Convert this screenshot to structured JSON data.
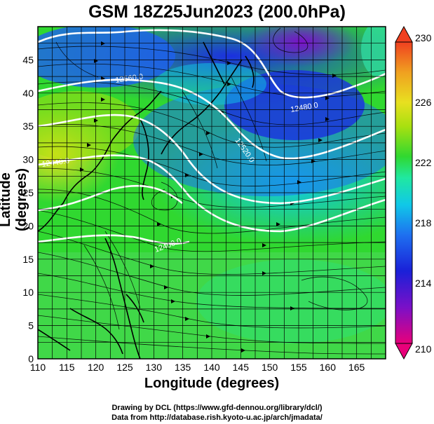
{
  "title": "GSM 18Z25Jun2023 (200.0hPa)",
  "xlabel": "Longitude (degrees)",
  "ylabel": "Latitude  (degrees)",
  "credits": {
    "line1": "Drawing by DCL (https://www.gfd-dennou.org/library/dcl/)",
    "line2": "Data from http://database.rish.kyoto-u.ac.jp/arch/jmadata/"
  },
  "map": {
    "lon_range": [
      110,
      170
    ],
    "lat_range": [
      0,
      50
    ],
    "x_ticks": [
      "110",
      "115",
      "120",
      "125",
      "130",
      "135",
      "140",
      "145",
      "150",
      "155",
      "160",
      "165"
    ],
    "y_ticks": [
      "0",
      "5",
      "10",
      "15",
      "20",
      "25",
      "30",
      "35",
      "40",
      "45"
    ],
    "grid": true,
    "field": "temperature (K)",
    "overlays": [
      "streamlines",
      "contours",
      "coastlines"
    ]
  },
  "colorbar": {
    "labels": [
      "230",
      "226",
      "222",
      "218",
      "214",
      "210"
    ],
    "range": [
      210,
      230
    ],
    "colors": [
      "#e8007a",
      "#7a10c8",
      "#1a20d8",
      "#1e70f0",
      "#10c8e8",
      "#20e8a0",
      "#30d830",
      "#a8e010",
      "#e8e020",
      "#f0a020",
      "#f04020"
    ]
  },
  "contour_labels": [
    "12560.0",
    "12520.0",
    "12480.0",
    "12440.0",
    "12400.0"
  ]
}
